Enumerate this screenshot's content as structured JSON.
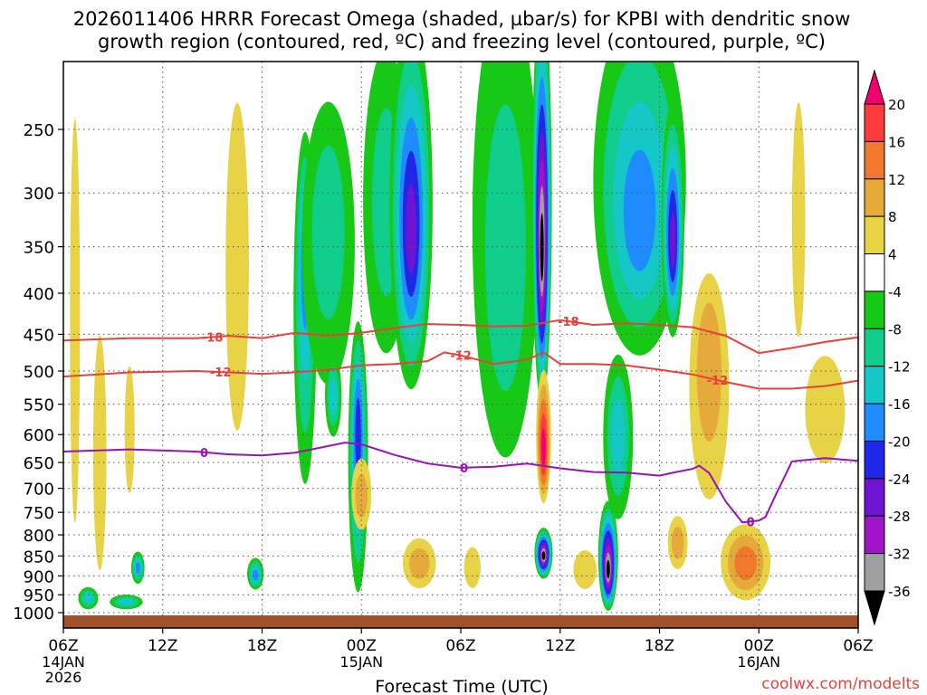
{
  "chart_data": {
    "type": "heatmap",
    "title_line1": "2026011406 HRRR Forecast Omega (shaded, µbar/s) for KPBI with dendritic snow",
    "title_line2": "growth region (contoured, red, ºC) and freezing level (contoured, purple, ºC)",
    "xlabel": "Forecast Time (UTC)",
    "ylabel": "",
    "credit": "coolwx.com/modelts",
    "x_range_hours": [
      0,
      48
    ],
    "y_range_hpa": [
      200,
      1030
    ],
    "x_ticks": [
      {
        "hour": 0,
        "label": "06Z",
        "sub1": "14JAN",
        "sub2": "2026"
      },
      {
        "hour": 6,
        "label": "12Z",
        "sub1": "",
        "sub2": ""
      },
      {
        "hour": 12,
        "label": "18Z",
        "sub1": "",
        "sub2": ""
      },
      {
        "hour": 18,
        "label": "00Z",
        "sub1": "15JAN",
        "sub2": ""
      },
      {
        "hour": 24,
        "label": "06Z",
        "sub1": "",
        "sub2": ""
      },
      {
        "hour": 30,
        "label": "12Z",
        "sub1": "",
        "sub2": ""
      },
      {
        "hour": 36,
        "label": "18Z",
        "sub1": "",
        "sub2": ""
      },
      {
        "hour": 42,
        "label": "00Z",
        "sub1": "16JAN",
        "sub2": ""
      },
      {
        "hour": 48,
        "label": "06Z",
        "sub1": "",
        "sub2": ""
      }
    ],
    "y_ticks": [
      250,
      300,
      350,
      400,
      450,
      500,
      550,
      600,
      650,
      700,
      750,
      800,
      850,
      900,
      950,
      1000
    ],
    "colorbar": {
      "labels": [
        "20",
        "16",
        "12",
        "8",
        "4",
        "-4",
        "-8",
        "-12",
        "-16",
        "-20",
        "-24",
        "-28",
        "-32",
        "-36"
      ],
      "colors": [
        "#f0006e",
        "#ff3a3a",
        "#f0782a",
        "#e6aa3a",
        "#e8d246",
        "#ffffff",
        "#17c817",
        "#0fce8c",
        "#14c8c8",
        "#1e8cff",
        "#1e28e6",
        "#6e14d2",
        "#a014c8",
        "#a0a0a0",
        "#000000"
      ]
    },
    "omega_features": [
      {
        "hour": 14.6,
        "p_center": 350,
        "hw": 0.7,
        "p_top": 300,
        "p_bot": 580,
        "min": -14
      },
      {
        "hour": 16.0,
        "p_center": 320,
        "hw": 1.6,
        "p_top": 250,
        "p_bot": 480,
        "min": -6
      },
      {
        "hour": 19.5,
        "p_center": 310,
        "hw": 1.4,
        "p_top": 200,
        "p_bot": 470,
        "min": -6
      },
      {
        "hour": 17.8,
        "p_center": 590,
        "hw": 0.6,
        "p_top": 470,
        "p_bot": 870,
        "min": -18
      },
      {
        "hour": 21.0,
        "p_center": 340,
        "hw": 1.3,
        "p_top": 200,
        "p_bot": 480,
        "min": -20
      },
      {
        "hour": 26.7,
        "p_center": 390,
        "hw": 2.0,
        "p_top": 200,
        "p_bot": 540,
        "min": -6
      },
      {
        "hour": 28.9,
        "p_center": 360,
        "hw": 0.6,
        "p_top": 200,
        "p_bot": 470,
        "min": -40
      },
      {
        "hour": 29.0,
        "p_center": 850,
        "hw": 0.55,
        "p_top": 790,
        "p_bot": 900,
        "min": -36
      },
      {
        "hour": 32.9,
        "p_center": 890,
        "hw": 0.6,
        "p_top": 760,
        "p_bot": 950,
        "min": -40
      },
      {
        "hour": 33.5,
        "p_center": 600,
        "hw": 0.9,
        "p_top": 480,
        "p_bot": 760,
        "min": -8
      },
      {
        "hour": 34.8,
        "p_center": 330,
        "hw": 2.8,
        "p_top": 200,
        "p_bot": 420,
        "min": -12
      },
      {
        "hour": 36.8,
        "p_center": 350,
        "hw": 0.7,
        "p_top": 250,
        "p_bot": 420,
        "min": -20
      },
      {
        "hour": 1.5,
        "p_center": 960,
        "hw": 0.6,
        "p_top": 930,
        "p_bot": 990,
        "min": -8
      },
      {
        "hour": 4.5,
        "p_center": 880,
        "hw": 0.4,
        "p_top": 840,
        "p_bot": 920,
        "min": -14
      },
      {
        "hour": 3.8,
        "p_center": 970,
        "hw": 1.0,
        "p_top": 950,
        "p_bot": 990,
        "min": -8
      },
      {
        "hour": 11.6,
        "p_center": 900,
        "hw": 0.5,
        "p_top": 860,
        "p_bot": 930,
        "min": -12
      },
      {
        "hour": 16.3,
        "p_center": 540,
        "hw": 0.5,
        "p_top": 480,
        "p_bot": 600,
        "min": -8
      },
      {
        "hour": 29.0,
        "p_center": 630,
        "hw": 0.45,
        "p_top": 520,
        "p_bot": 700,
        "min": 24
      },
      {
        "hour": 0.7,
        "p_center": 420,
        "hw": 0.3,
        "p_top": 250,
        "p_bot": 750,
        "min": 6
      },
      {
        "hour": 2.2,
        "p_center": 700,
        "hw": 0.4,
        "p_top": 500,
        "p_bot": 800,
        "min": 5
      },
      {
        "hour": 4.0,
        "p_center": 600,
        "hw": 0.3,
        "p_top": 500,
        "p_bot": 700,
        "min": 5
      },
      {
        "hour": 10.5,
        "p_center": 400,
        "hw": 0.7,
        "p_top": 250,
        "p_bot": 550,
        "min": 5
      },
      {
        "hour": 18.0,
        "p_center": 720,
        "hw": 0.6,
        "p_top": 650,
        "p_bot": 780,
        "min": 9
      },
      {
        "hour": 21.5,
        "p_center": 870,
        "hw": 1.0,
        "p_top": 810,
        "p_bot": 930,
        "min": 9
      },
      {
        "hour": 24.7,
        "p_center": 880,
        "hw": 0.5,
        "p_top": 830,
        "p_bot": 930,
        "min": 7
      },
      {
        "hour": 31.5,
        "p_center": 880,
        "hw": 0.7,
        "p_top": 840,
        "p_bot": 930,
        "min": 7
      },
      {
        "hour": 37.1,
        "p_center": 820,
        "hw": 0.6,
        "p_top": 760,
        "p_bot": 880,
        "min": 9
      },
      {
        "hour": 39.0,
        "p_center": 470,
        "hw": 1.2,
        "p_top": 420,
        "p_bot": 650,
        "min": 9
      },
      {
        "hour": 41.2,
        "p_center": 870,
        "hw": 1.5,
        "p_top": 780,
        "p_bot": 960,
        "min": 12
      },
      {
        "hour": 44.4,
        "p_center": 350,
        "hw": 0.4,
        "p_top": 250,
        "p_bot": 420,
        "min": 5
      },
      {
        "hour": 46.0,
        "p_center": 560,
        "hw": 1.2,
        "p_top": 480,
        "p_bot": 650,
        "min": 5
      }
    ],
    "contours": [
      {
        "label": "-18",
        "color": "#e8413a",
        "label_at_hour": [
          9,
          30.5
        ],
        "x": [
          0,
          4,
          8,
          10,
          12,
          14,
          16,
          18,
          20,
          22,
          24,
          26,
          28,
          30,
          32,
          34,
          36,
          38,
          40,
          42,
          44,
          46,
          48
        ],
        "y": [
          458,
          455,
          455,
          452,
          455,
          448,
          452,
          448,
          442,
          437,
          438,
          440,
          439,
          432,
          438,
          436,
          438,
          441,
          452,
          475,
          468,
          460,
          454
        ]
      },
      {
        "label": "-12",
        "color": "#e8413a",
        "label_at_hour": [
          9.5,
          24,
          39.5
        ],
        "x": [
          0,
          4,
          8,
          10,
          12,
          14,
          16,
          18,
          20,
          22,
          23,
          24,
          26,
          28,
          29,
          30,
          32,
          34,
          36,
          38,
          40,
          42,
          44,
          46,
          48
        ],
        "y": [
          508,
          502,
          500,
          502,
          504,
          502,
          498,
          492,
          490,
          486,
          474,
          478,
          490,
          484,
          474,
          490,
          490,
          492,
          498,
          505,
          516,
          526,
          526,
          522,
          514
        ]
      },
      {
        "label": "0",
        "color": "#9614b4",
        "label_at_hour": [
          8.5,
          24.2,
          41.5
        ],
        "x": [
          0,
          4,
          8,
          10,
          12,
          14,
          16,
          17,
          18,
          20,
          22,
          24,
          26,
          28,
          30,
          32,
          34,
          36,
          37,
          38,
          38.4,
          39,
          40,
          41,
          42,
          42.4,
          43,
          44,
          46,
          48
        ],
        "y": [
          630,
          626,
          630,
          635,
          637,
          632,
          620,
          614,
          617,
          636,
          652,
          660,
          658,
          652,
          661,
          668,
          669,
          675,
          668,
          662,
          656,
          670,
          727,
          772,
          768,
          760,
          715,
          648,
          642,
          647
        ]
      }
    ]
  }
}
